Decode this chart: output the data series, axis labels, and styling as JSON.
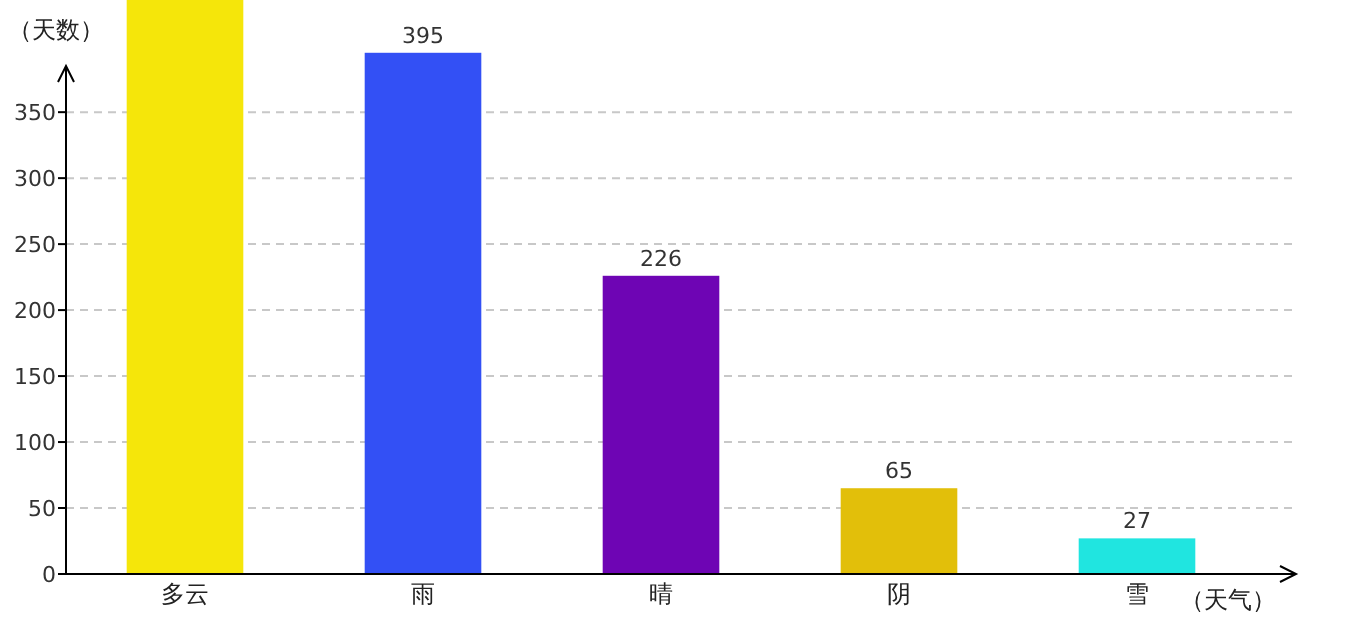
{
  "chart_data": {
    "type": "bar",
    "ylabel": "（天数）",
    "xlabel": "（天气）",
    "categories": [
      "多云",
      "雨",
      "晴",
      "阴",
      "雪"
    ],
    "values": [
      435,
      395,
      226,
      65,
      27
    ],
    "colors": [
      "#f5e60a",
      "#3350f5",
      "#6e05b4",
      "#e2bf0a",
      "#20e5e0"
    ],
    "value_labels": [
      null,
      "395",
      "226",
      "65",
      "27"
    ],
    "ylim": [
      0,
      435
    ],
    "yticks": [
      0,
      50,
      100,
      150,
      200,
      250,
      300,
      350
    ],
    "grid": "y"
  }
}
